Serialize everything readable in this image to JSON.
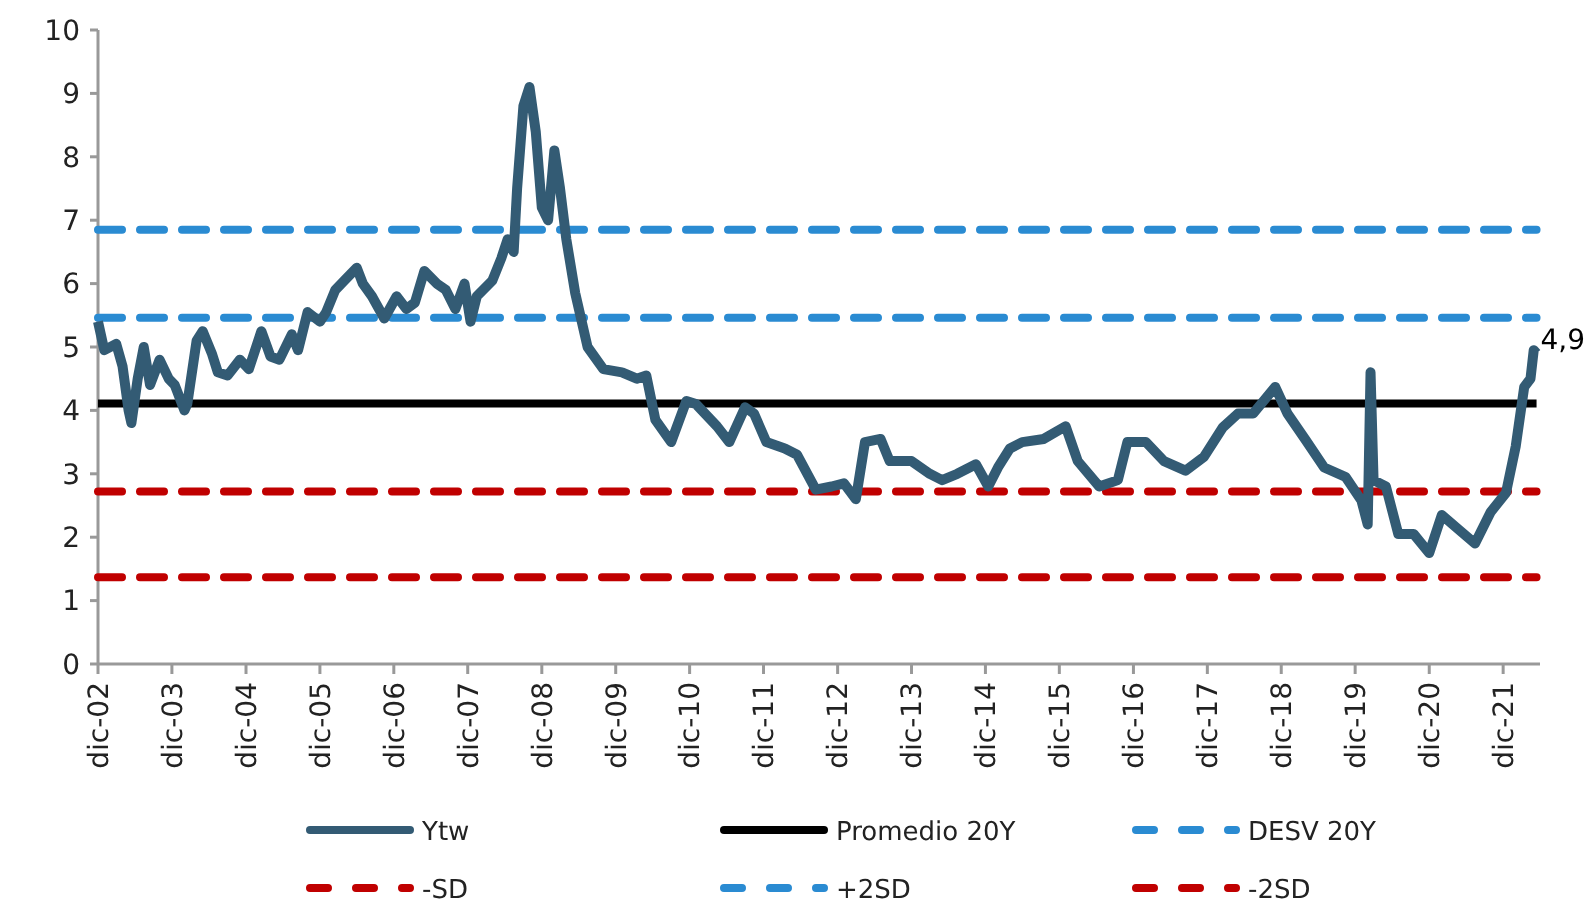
{
  "chart_data": {
    "type": "line",
    "legend": "bottom",
    "grid": false,
    "xlim": [
      "2002-12-01",
      "2022-06-01"
    ],
    "ylim": [
      0,
      10
    ],
    "yticks": [
      0,
      1,
      2,
      3,
      4,
      5,
      6,
      7,
      8,
      9,
      10
    ],
    "xticks": [
      {
        "value": "2002-12-01",
        "label": "dic-02"
      },
      {
        "value": "2003-12-01",
        "label": "dic-03"
      },
      {
        "value": "2004-12-01",
        "label": "dic-04"
      },
      {
        "value": "2005-12-01",
        "label": "dic-05"
      },
      {
        "value": "2006-12-01",
        "label": "dic-06"
      },
      {
        "value": "2007-12-01",
        "label": "dic-07"
      },
      {
        "value": "2008-12-01",
        "label": "dic-08"
      },
      {
        "value": "2009-12-01",
        "label": "dic-09"
      },
      {
        "value": "2010-12-01",
        "label": "dic-10"
      },
      {
        "value": "2011-12-01",
        "label": "dic-11"
      },
      {
        "value": "2012-12-01",
        "label": "dic-12"
      },
      {
        "value": "2013-12-01",
        "label": "dic-13"
      },
      {
        "value": "2014-12-01",
        "label": "dic-14"
      },
      {
        "value": "2015-12-01",
        "label": "dic-15"
      },
      {
        "value": "2016-12-01",
        "label": "dic-16"
      },
      {
        "value": "2017-12-01",
        "label": "dic-17"
      },
      {
        "value": "2018-12-01",
        "label": "dic-18"
      },
      {
        "value": "2019-12-01",
        "label": "dic-19"
      },
      {
        "value": "2020-12-01",
        "label": "dic-20"
      },
      {
        "value": "2021-12-01",
        "label": "dic-21"
      }
    ],
    "annotations": [
      {
        "text": "4,9",
        "x": "2022-05-15",
        "y": 4.9
      }
    ],
    "series": [
      {
        "name": "Ytw",
        "color": "#335b74",
        "line_style": "solid",
        "x": [
          "2002-12-01",
          "2003-01-01",
          "2003-03-01",
          "2003-04-01",
          "2003-05-01",
          "2003-05-15",
          "2003-06-15",
          "2003-07-15",
          "2003-08-15",
          "2003-10-01",
          "2003-11-15",
          "2003-12-15",
          "2004-02-01",
          "2004-02-15",
          "2004-04-01",
          "2004-05-01",
          "2004-06-15",
          "2004-07-15",
          "2004-09-01",
          "2004-11-01",
          "2004-12-15",
          "2005-02-15",
          "2005-04-01",
          "2005-05-15",
          "2005-07-15",
          "2005-08-15",
          "2005-10-01",
          "2005-12-01",
          "2006-01-01",
          "2006-02-15",
          "2006-04-01",
          "2006-06-01",
          "2006-07-01",
          "2006-08-15",
          "2006-10-15",
          "2006-12-15",
          "2007-02-01",
          "2007-03-15",
          "2007-05-01",
          "2007-07-01",
          "2007-08-15",
          "2007-10-01",
          "2007-11-15",
          "2007-12-15",
          "2008-01-15",
          "2008-04-01",
          "2008-05-15",
          "2008-06-15",
          "2008-07-15",
          "2008-08-01",
          "2008-09-01",
          "2008-10-01",
          "2008-11-01",
          "2008-12-01",
          "2009-01-01",
          "2009-02-01",
          "2009-03-01",
          "2009-04-01",
          "2009-05-15",
          "2009-07-15",
          "2009-10-01",
          "2010-01-01",
          "2010-03-15",
          "2010-05-01",
          "2010-06-15",
          "2010-09-01",
          "2010-11-15",
          "2011-01-01",
          "2011-04-15",
          "2011-06-15",
          "2011-09-01",
          "2011-10-15",
          "2011-12-15",
          "2012-03-15",
          "2012-05-15",
          "2012-08-15",
          "2012-11-01",
          "2013-01-01",
          "2013-03-01",
          "2013-04-15",
          "2013-07-01",
          "2013-08-15",
          "2013-12-01",
          "2014-03-01",
          "2014-05-01",
          "2014-07-15",
          "2014-10-15",
          "2014-12-15",
          "2015-02-01",
          "2015-04-01",
          "2015-06-01",
          "2015-09-15",
          "2016-01-01",
          "2016-03-01",
          "2016-06-15",
          "2016-09-15",
          "2016-11-01",
          "2017-02-01",
          "2017-05-01",
          "2017-08-15",
          "2017-11-15",
          "2018-02-15",
          "2018-05-01",
          "2018-07-15",
          "2018-11-01",
          "2019-01-01",
          "2019-04-01",
          "2019-07-01",
          "2019-10-15",
          "2020-01-01",
          "2020-02-01",
          "2020-02-15",
          "2020-03-01",
          "2020-05-01",
          "2020-07-01",
          "2020-09-15",
          "2020-12-01",
          "2021-02-01",
          "2021-04-15",
          "2021-07-15",
          "2021-10-01",
          "2021-12-15",
          "2022-02-01",
          "2022-03-15",
          "2022-04-15",
          "2022-05-01",
          "2022-05-15"
        ],
        "values": [
          5.4,
          4.95,
          5.05,
          4.7,
          4.0,
          3.8,
          4.5,
          5.0,
          4.4,
          4.8,
          4.5,
          4.4,
          4.0,
          4.1,
          5.1,
          5.25,
          4.9,
          4.6,
          4.55,
          4.8,
          4.65,
          5.25,
          4.85,
          4.8,
          5.2,
          4.95,
          5.55,
          5.4,
          5.55,
          5.9,
          6.05,
          6.25,
          6.0,
          5.8,
          5.45,
          5.8,
          5.6,
          5.7,
          6.2,
          6.0,
          5.9,
          5.6,
          6.0,
          5.4,
          5.8,
          6.05,
          6.4,
          6.7,
          6.5,
          7.5,
          8.8,
          9.1,
          8.4,
          7.2,
          7.0,
          8.1,
          7.5,
          6.7,
          5.85,
          5.0,
          4.65,
          4.6,
          4.5,
          4.55,
          3.85,
          3.5,
          4.15,
          4.1,
          3.75,
          3.5,
          4.05,
          3.95,
          3.5,
          3.4,
          3.3,
          2.75,
          2.8,
          2.85,
          2.6,
          3.5,
          3.55,
          3.2,
          3.2,
          3.0,
          2.9,
          3.0,
          3.15,
          2.8,
          3.1,
          3.4,
          3.5,
          3.55,
          3.75,
          3.2,
          2.8,
          2.9,
          3.5,
          3.5,
          3.2,
          3.05,
          3.27,
          3.73,
          3.95,
          3.95,
          4.37,
          3.95,
          3.53,
          3.1,
          2.95,
          2.58,
          2.2,
          4.6,
          2.9,
          2.8,
          2.05,
          2.05,
          1.75,
          2.35,
          2.15,
          1.9,
          2.4,
          2.7,
          3.43,
          4.37,
          4.5,
          4.95,
          4.9
        ]
      },
      {
        "name": "Promedio 20Y",
        "color": "#000000",
        "line_style": "solid",
        "x": [
          "2002-12-01",
          "2022-05-15"
        ],
        "values": [
          4.11,
          4.11
        ]
      },
      {
        "name": "DESV 20Y",
        "color": "#2a8bd2",
        "line_style": "dashed",
        "x": [
          "2002-12-01",
          "2022-05-15"
        ],
        "values": [
          5.46,
          5.46
        ]
      },
      {
        "name": "-SD",
        "color": "#c00000",
        "line_style": "dashed",
        "x": [
          "2002-12-01",
          "2022-05-15"
        ],
        "values": [
          2.72,
          2.72
        ]
      },
      {
        "name": "+2SD",
        "color": "#2a8bd2",
        "line_style": "dashed",
        "x": [
          "2002-12-01",
          "2022-05-15"
        ],
        "values": [
          6.85,
          6.85
        ]
      },
      {
        "name": "-2SD",
        "color": "#c00000",
        "line_style": "dashed",
        "x": [
          "2002-12-01",
          "2022-05-15"
        ],
        "values": [
          1.37,
          1.37
        ]
      }
    ]
  }
}
